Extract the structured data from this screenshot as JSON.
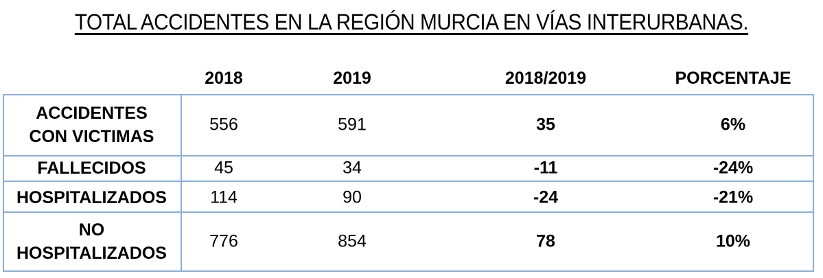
{
  "title": "TOTAL ACCIDENTES EN LA REGIÓN MURCIA EN VÍAS  INTERURBANAS.",
  "columns": [
    "2018",
    "2019",
    "2018/2019",
    "PORCENTAJE"
  ],
  "rows": [
    {
      "label_lines": [
        "ACCIDENTES",
        "CON VICTIMAS"
      ],
      "v2018": "556",
      "v2019": "591",
      "diff": "35",
      "pct": "6%"
    },
    {
      "label_lines": [
        "FALLECIDOS"
      ],
      "v2018": "45",
      "v2019": "34",
      "diff": "-11",
      "pct": "-24%"
    },
    {
      "label_lines": [
        "HOSPITALIZADOS"
      ],
      "v2018": "114",
      "v2019": "90",
      "diff": "-24",
      "pct": "-21%"
    },
    {
      "label_lines": [
        "NO",
        "HOSPITALIZADOS"
      ],
      "v2018": "776",
      "v2019": "854",
      "diff": "78",
      "pct": "10%"
    }
  ],
  "colors": {
    "border": "#8aaedc"
  }
}
